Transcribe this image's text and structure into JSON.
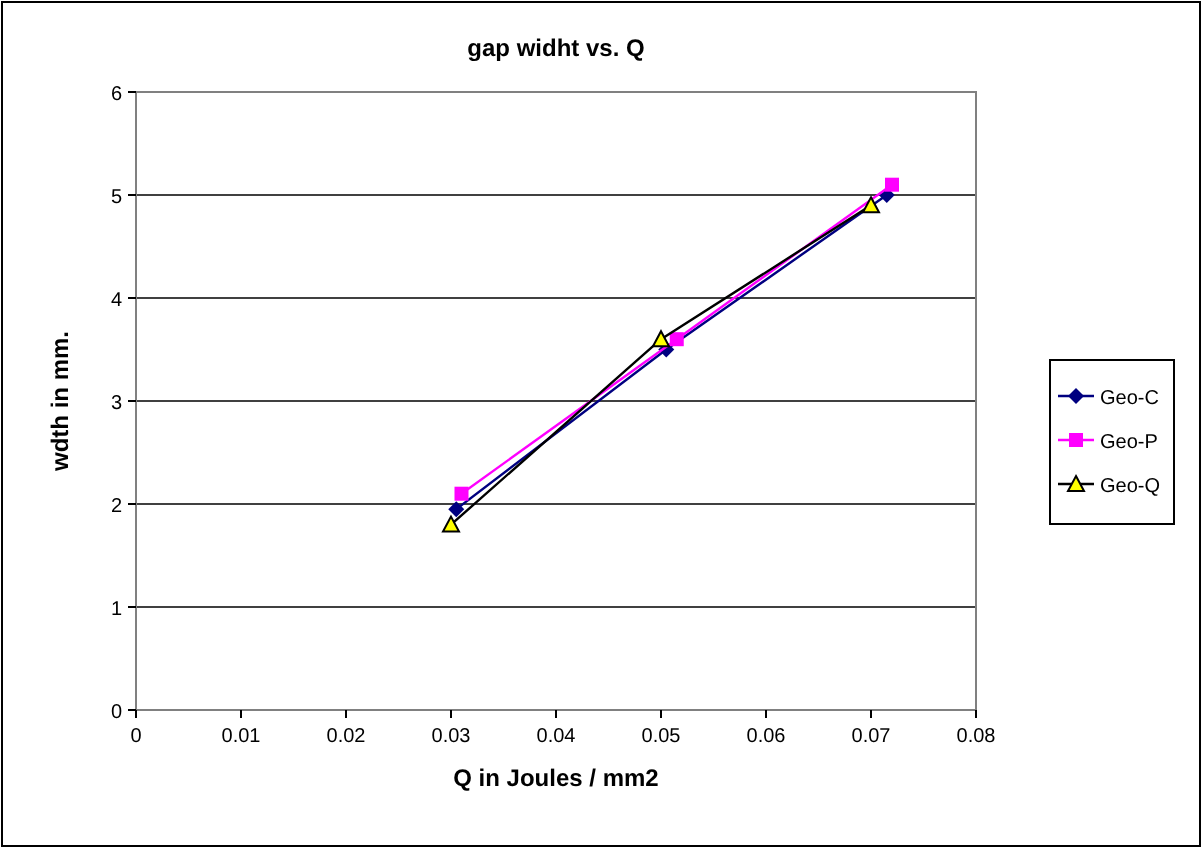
{
  "chart_data": {
    "type": "line",
    "title": "gap widht vs. Q",
    "xlabel": "Q in Joules / mm2",
    "ylabel": "wdth in mm.",
    "xlim": [
      0,
      0.08
    ],
    "xticks": [
      0,
      0.01,
      0.02,
      0.03,
      0.04,
      0.05,
      0.06,
      0.07,
      0.08
    ],
    "ylim": [
      0,
      6
    ],
    "yticks": [
      0,
      1,
      2,
      3,
      4,
      5,
      6
    ],
    "grid": "y",
    "legend": "right",
    "series": [
      {
        "name": "Geo-C",
        "color": "#000080",
        "marker": "diamond",
        "x": [
          0.0305,
          0.0505,
          0.0715
        ],
        "values": [
          1.95,
          3.5,
          5.0
        ]
      },
      {
        "name": "Geo-P",
        "color": "#ff00ff",
        "marker": "square",
        "x": [
          0.031,
          0.0515,
          0.072
        ],
        "values": [
          2.1,
          3.6,
          5.1
        ]
      },
      {
        "name": "Geo-Q",
        "color": "#000000",
        "marker": "triangle",
        "x": [
          0.03,
          0.05,
          0.07
        ],
        "values": [
          1.8,
          3.6,
          4.9
        ]
      }
    ]
  }
}
